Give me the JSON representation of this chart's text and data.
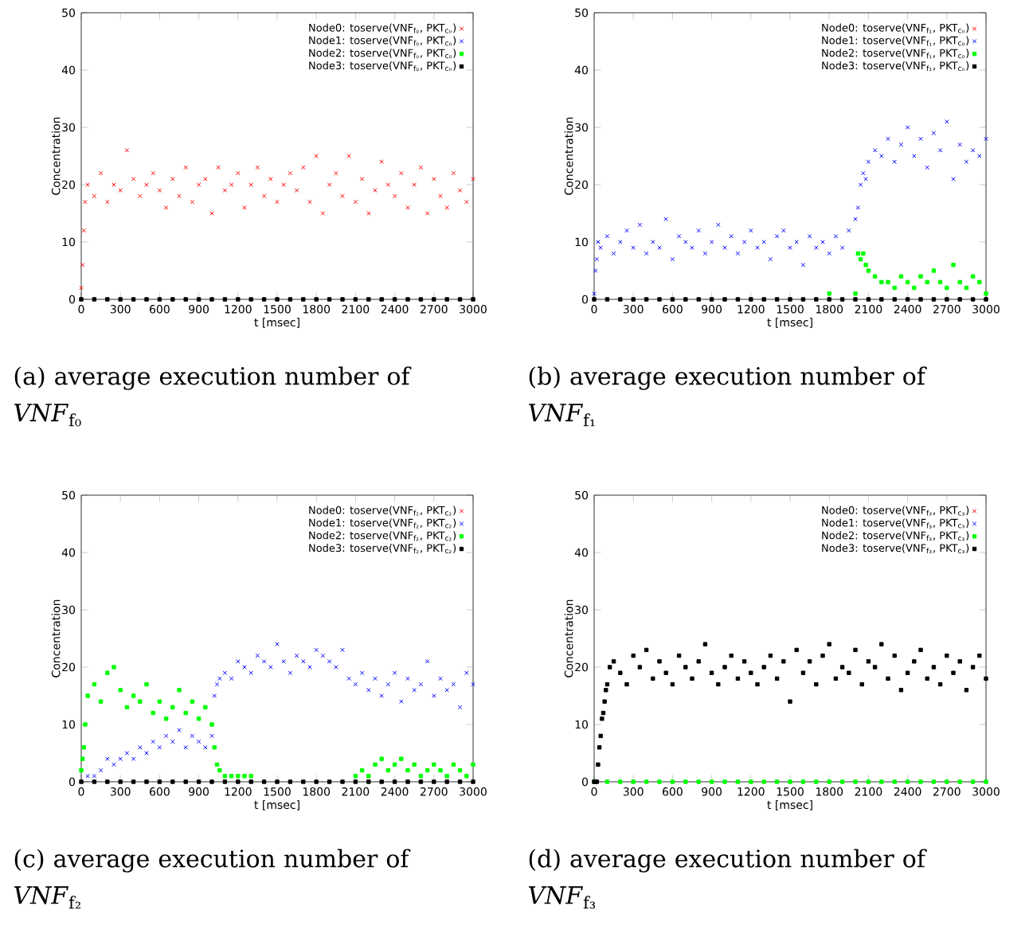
{
  "chart_data": [
    {
      "type": "scatter",
      "xlabel": "t [msec]",
      "ylabel": "Concentration",
      "xlim": [
        0,
        3000
      ],
      "ylim": [
        0,
        50
      ],
      "xticks": [
        0,
        300,
        600,
        900,
        1200,
        1500,
        1800,
        2100,
        2400,
        2700,
        3000
      ],
      "yticks": [
        0,
        10,
        20,
        30,
        40,
        50
      ],
      "legend": "top right",
      "annotations": [
        "(a) average execution number of *VNF*$_{f₀}$"
      ],
      "series": [
        {
          "name": "Node0: toserve(VNF$_{f₀}$, PKT$_{c₀}$)",
          "color": "#ff0000",
          "marker": "cross",
          "x": [
            0,
            10,
            20,
            30,
            50,
            100,
            150,
            200,
            250,
            300,
            350,
            400,
            450,
            500,
            550,
            600,
            650,
            700,
            750,
            800,
            850,
            900,
            950,
            1000,
            1050,
            1100,
            1150,
            1200,
            1250,
            1300,
            1350,
            1400,
            1450,
            1500,
            1550,
            1600,
            1650,
            1700,
            1750,
            1800,
            1850,
            1900,
            1950,
            2000,
            2050,
            2100,
            2150,
            2200,
            2250,
            2300,
            2350,
            2400,
            2450,
            2500,
            2550,
            2600,
            2650,
            2700,
            2750,
            2800,
            2850,
            2900,
            2950,
            3000
          ],
          "values": [
            2,
            6,
            12,
            17,
            20,
            18,
            22,
            17,
            20,
            19,
            26,
            21,
            18,
            20,
            22,
            19,
            16,
            21,
            18,
            23,
            17,
            20,
            21,
            15,
            23,
            19,
            20,
            22,
            16,
            20,
            23,
            18,
            21,
            17,
            20,
            22,
            19,
            23,
            17,
            25,
            15,
            20,
            22,
            18,
            25,
            17,
            21,
            15,
            19,
            24,
            20,
            18,
            22,
            16,
            20,
            23,
            15,
            21,
            18,
            16,
            22,
            19,
            17,
            21
          ]
        },
        {
          "name": "Node1: toserve(VNF$_{f₀}$, PKT$_{c₀}$)",
          "color": "#0000ff",
          "marker": "cross"
        },
        {
          "name": "Node2: toserve(VNF$_{f₀}$, PKT$_{c₀}$)",
          "color": "#00ff00",
          "marker": "square"
        },
        {
          "name": "Node3: toserve(VNF$_{f₀}$, PKT$_{c₀}$)",
          "color": "#000000",
          "marker": "square",
          "x": [
            0,
            100,
            200,
            300,
            400,
            500,
            600,
            700,
            800,
            900,
            1000,
            1100,
            1200,
            1300,
            1400,
            1500,
            1600,
            1700,
            1800,
            1900,
            2000,
            2100,
            2200,
            2300,
            2400,
            2500,
            2600,
            2700,
            2800,
            2900,
            3000
          ],
          "values": [
            0,
            0,
            0,
            0,
            0,
            0,
            0,
            0,
            0,
            0,
            0,
            0,
            0,
            0,
            0,
            0,
            0,
            0,
            0,
            0,
            0,
            0,
            0,
            0,
            0,
            0,
            0,
            0,
            0,
            0,
            0
          ]
        }
      ]
    },
    {
      "type": "scatter",
      "xlabel": "t [msec]",
      "ylabel": "Concentration",
      "xlim": [
        0,
        3000
      ],
      "ylim": [
        0,
        50
      ],
      "xticks": [
        0,
        300,
        600,
        900,
        1200,
        1500,
        1800,
        2100,
        2400,
        2700,
        3000
      ],
      "yticks": [
        0,
        10,
        20,
        30,
        40,
        50
      ],
      "legend": "top right",
      "annotations": [
        "(b) average execution number of *VNF*$_{f₁}$"
      ],
      "series": [
        {
          "name": "Node0: toserve(VNF$_{f₁}$, PKT$_{c₀}$)",
          "color": "#ff0000",
          "marker": "cross"
        },
        {
          "name": "Node1: toserve(VNF$_{f₁}$, PKT$_{c₀}$)",
          "color": "#0000ff",
          "marker": "cross",
          "x": [
            0,
            10,
            20,
            30,
            50,
            100,
            150,
            200,
            250,
            300,
            350,
            400,
            450,
            500,
            550,
            600,
            650,
            700,
            750,
            800,
            850,
            900,
            950,
            1000,
            1050,
            1100,
            1150,
            1200,
            1250,
            1300,
            1350,
            1400,
            1450,
            1500,
            1550,
            1600,
            1650,
            1700,
            1750,
            1800,
            1850,
            1900,
            1950,
            2000,
            2020,
            2040,
            2060,
            2080,
            2100,
            2150,
            2200,
            2250,
            2300,
            2350,
            2400,
            2450,
            2500,
            2550,
            2600,
            2650,
            2700,
            2750,
            2800,
            2850,
            2900,
            2950,
            3000
          ],
          "values": [
            1,
            5,
            7,
            10,
            9,
            11,
            8,
            10,
            12,
            9,
            13,
            8,
            10,
            9,
            14,
            7,
            11,
            10,
            9,
            12,
            8,
            10,
            13,
            9,
            11,
            8,
            10,
            12,
            9,
            10,
            7,
            11,
            12,
            9,
            10,
            6,
            11,
            9,
            10,
            8,
            11,
            9,
            12,
            14,
            16,
            20,
            22,
            21,
            24,
            26,
            25,
            28,
            24,
            27,
            30,
            25,
            28,
            23,
            29,
            26,
            31,
            21,
            27,
            24,
            26,
            25,
            28
          ]
        },
        {
          "name": "Node2: toserve(VNF$_{f₁}$, PKT$_{c₀}$)",
          "color": "#00ff00",
          "marker": "square",
          "x": [
            1800,
            2000,
            2020,
            2040,
            2060,
            2080,
            2100,
            2150,
            2200,
            2250,
            2300,
            2350,
            2400,
            2450,
            2500,
            2550,
            2600,
            2650,
            2700,
            2750,
            2800,
            2850,
            2900,
            2950,
            3000
          ],
          "values": [
            1,
            1,
            8,
            7,
            8,
            6,
            5,
            4,
            3,
            3,
            2,
            4,
            3,
            2,
            4,
            3,
            5,
            3,
            2,
            6,
            3,
            2,
            4,
            3,
            1
          ]
        },
        {
          "name": "Node3: toserve(VNF$_{f₁}$, PKT$_{c₀}$)",
          "color": "#000000",
          "marker": "square",
          "x": [
            0,
            100,
            200,
            300,
            400,
            500,
            600,
            700,
            800,
            900,
            1000,
            1100,
            1200,
            1300,
            1400,
            1500,
            1600,
            1700,
            1800,
            1900,
            2000,
            2100,
            2200,
            2300,
            2400,
            2500,
            2600,
            2700,
            2800,
            2900,
            3000
          ],
          "values": [
            0,
            0,
            0,
            0,
            0,
            0,
            0,
            0,
            0,
            0,
            0,
            0,
            0,
            0,
            0,
            0,
            0,
            0,
            0,
            0,
            0,
            0,
            0,
            0,
            0,
            0,
            0,
            0,
            0,
            0,
            0
          ]
        }
      ]
    },
    {
      "type": "scatter",
      "xlabel": "t [msec]",
      "ylabel": "Concentration",
      "xlim": [
        0,
        3000
      ],
      "ylim": [
        0,
        50
      ],
      "xticks": [
        0,
        300,
        600,
        900,
        1200,
        1500,
        1800,
        2100,
        2400,
        2700,
        3000
      ],
      "yticks": [
        0,
        10,
        20,
        30,
        40,
        50
      ],
      "legend": "top right",
      "annotations": [
        "(c) average execution number of *VNF*$_{f₂}$"
      ],
      "series": [
        {
          "name": "Node0: toserve(VNF$_{f₂}$, PKT$_{c₂}$)",
          "color": "#ff0000",
          "marker": "cross"
        },
        {
          "name": "Node1: toserve(VNF$_{f₂}$, PKT$_{c₂}$)",
          "color": "#0000ff",
          "marker": "cross",
          "x": [
            50,
            100,
            150,
            200,
            250,
            300,
            350,
            400,
            450,
            500,
            550,
            600,
            650,
            700,
            750,
            800,
            850,
            900,
            950,
            1000,
            1020,
            1040,
            1060,
            1100,
            1150,
            1200,
            1250,
            1300,
            1350,
            1400,
            1450,
            1500,
            1550,
            1600,
            1650,
            1700,
            1750,
            1800,
            1850,
            1900,
            1950,
            2000,
            2050,
            2100,
            2150,
            2200,
            2250,
            2300,
            2350,
            2400,
            2450,
            2500,
            2550,
            2600,
            2650,
            2700,
            2750,
            2800,
            2850,
            2900,
            2950,
            3000
          ],
          "values": [
            1,
            1,
            2,
            4,
            3,
            4,
            5,
            4,
            6,
            5,
            7,
            6,
            8,
            7,
            9,
            6,
            8,
            7,
            6,
            8,
            15,
            17,
            18,
            19,
            18,
            21,
            20,
            19,
            22,
            21,
            20,
            24,
            21,
            19,
            22,
            21,
            20,
            23,
            22,
            21,
            20,
            23,
            18,
            17,
            19,
            16,
            18,
            15,
            17,
            19,
            14,
            18,
            16,
            17,
            21,
            15,
            18,
            16,
            17,
            13,
            19,
            17
          ]
        },
        {
          "name": "Node2: toserve(VNF$_{f₂}$, PKT$_{c₂}$)",
          "color": "#00ff00",
          "marker": "square",
          "x": [
            0,
            10,
            20,
            30,
            50,
            100,
            150,
            200,
            250,
            300,
            350,
            400,
            450,
            500,
            550,
            600,
            650,
            700,
            750,
            800,
            850,
            900,
            950,
            1000,
            1020,
            1040,
            1060,
            1100,
            1150,
            1200,
            1250,
            1300,
            2100,
            2150,
            2200,
            2250,
            2300,
            2350,
            2400,
            2450,
            2500,
            2550,
            2600,
            2650,
            2700,
            2750,
            2800,
            2850,
            2900,
            2950,
            3000
          ],
          "values": [
            2,
            4,
            6,
            10,
            15,
            17,
            14,
            19,
            20,
            16,
            13,
            15,
            14,
            17,
            12,
            14,
            11,
            13,
            16,
            12,
            14,
            11,
            13,
            10,
            6,
            3,
            2,
            1,
            1,
            1,
            1,
            1,
            1,
            2,
            1,
            3,
            4,
            2,
            3,
            4,
            2,
            3,
            1,
            2,
            3,
            2,
            1,
            3,
            2,
            1,
            3
          ]
        },
        {
          "name": "Node3: toserve(VNF$_{f₂}$, PKT$_{c₂}$)",
          "color": "#000000",
          "marker": "square",
          "x": [
            0,
            100,
            200,
            300,
            400,
            500,
            600,
            700,
            800,
            900,
            1000,
            1100,
            1200,
            1300,
            1400,
            1500,
            1600,
            1700,
            1800,
            1900,
            2000,
            2100,
            2200,
            2300,
            2400,
            2500,
            2600,
            2700,
            2800,
            2900,
            3000
          ],
          "values": [
            0,
            0,
            0,
            0,
            0,
            0,
            0,
            0,
            0,
            0,
            0,
            0,
            0,
            0,
            0,
            0,
            0,
            0,
            0,
            0,
            0,
            0,
            0,
            0,
            0,
            0,
            0,
            0,
            0,
            0,
            0
          ]
        }
      ]
    },
    {
      "type": "scatter",
      "xlabel": "t [msec]",
      "ylabel": "Concentration",
      "xlim": [
        0,
        3000
      ],
      "ylim": [
        0,
        50
      ],
      "xticks": [
        0,
        300,
        600,
        900,
        1200,
        1500,
        1800,
        2100,
        2400,
        2700,
        3000
      ],
      "yticks": [
        0,
        10,
        20,
        30,
        40,
        50
      ],
      "legend": "top right",
      "annotations": [
        "(d) average execution number of *VNF*$_{f₃}$"
      ],
      "series": [
        {
          "name": "Node0: toserve(VNF$_{f₃}$, PKT$_{c₃}$)",
          "color": "#ff0000",
          "marker": "cross"
        },
        {
          "name": "Node1: toserve(VNF$_{f₃}$, PKT$_{c₃}$)",
          "color": "#0000ff",
          "marker": "cross"
        },
        {
          "name": "Node2: toserve(VNF$_{f₃}$, PKT$_{c₃}$)",
          "color": "#00ff00",
          "marker": "square",
          "x": [
            0,
            100,
            200,
            300,
            400,
            500,
            600,
            700,
            800,
            900,
            1000,
            1100,
            1200,
            1300,
            1400,
            1500,
            1600,
            1700,
            1800,
            1900,
            2000,
            2100,
            2200,
            2300,
            2400,
            2500,
            2600,
            2700,
            2800,
            2900,
            3000
          ],
          "values": [
            0,
            0,
            0,
            0,
            0,
            0,
            0,
            0,
            0,
            0,
            0,
            0,
            0,
            0,
            0,
            0,
            0,
            0,
            0,
            0,
            0,
            0,
            0,
            0,
            0,
            0,
            0,
            0,
            0,
            0,
            0
          ]
        },
        {
          "name": "Node3: toserve(VNF$_{f₃}$, PKT$_{c₃}$)",
          "color": "#000000",
          "marker": "square",
          "x": [
            0,
            10,
            20,
            30,
            40,
            50,
            60,
            70,
            80,
            90,
            100,
            120,
            150,
            200,
            250,
            300,
            350,
            400,
            450,
            500,
            550,
            600,
            650,
            700,
            750,
            800,
            850,
            900,
            950,
            1000,
            1050,
            1100,
            1150,
            1200,
            1250,
            1300,
            1350,
            1400,
            1450,
            1500,
            1550,
            1600,
            1650,
            1700,
            1750,
            1800,
            1850,
            1900,
            1950,
            2000,
            2050,
            2100,
            2150,
            2200,
            2250,
            2300,
            2350,
            2400,
            2450,
            2500,
            2550,
            2600,
            2650,
            2700,
            2750,
            2800,
            2850,
            2900,
            2950,
            3000
          ],
          "values": [
            0,
            0,
            0,
            3,
            6,
            8,
            11,
            12,
            14,
            16,
            17,
            20,
            21,
            19,
            17,
            22,
            20,
            23,
            18,
            21,
            19,
            17,
            22,
            20,
            18,
            21,
            24,
            19,
            17,
            20,
            22,
            18,
            21,
            19,
            17,
            20,
            22,
            18,
            21,
            14,
            23,
            19,
            21,
            17,
            22,
            24,
            18,
            20,
            19,
            23,
            17,
            21,
            20,
            24,
            18,
            22,
            16,
            19,
            21,
            23,
            18,
            20,
            17,
            22,
            19,
            21,
            16,
            20,
            22,
            18
          ]
        }
      ]
    }
  ]
}
